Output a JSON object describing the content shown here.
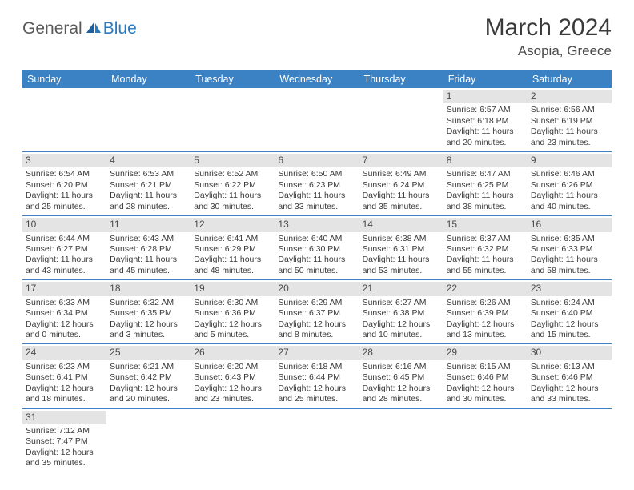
{
  "brand": {
    "general": "General",
    "blue": "Blue"
  },
  "title": "March 2024",
  "location": "Asopia, Greece",
  "colors": {
    "header_bg": "#3b82c4",
    "daynum_bg": "#e4e4e4",
    "rule": "#3b82c4",
    "text": "#3a3a3a",
    "logo_gray": "#5a5a5a",
    "logo_blue": "#2b7ac0"
  },
  "day_headers": [
    "Sunday",
    "Monday",
    "Tuesday",
    "Wednesday",
    "Thursday",
    "Friday",
    "Saturday"
  ],
  "weeks": [
    [
      {
        "n": "",
        "empty": true
      },
      {
        "n": "",
        "empty": true
      },
      {
        "n": "",
        "empty": true
      },
      {
        "n": "",
        "empty": true
      },
      {
        "n": "",
        "empty": true
      },
      {
        "n": "1",
        "sr": "Sunrise: 6:57 AM",
        "ss": "Sunset: 6:18 PM",
        "d1": "Daylight: 11 hours",
        "d2": "and 20 minutes."
      },
      {
        "n": "2",
        "sr": "Sunrise: 6:56 AM",
        "ss": "Sunset: 6:19 PM",
        "d1": "Daylight: 11 hours",
        "d2": "and 23 minutes."
      }
    ],
    [
      {
        "n": "3",
        "sr": "Sunrise: 6:54 AM",
        "ss": "Sunset: 6:20 PM",
        "d1": "Daylight: 11 hours",
        "d2": "and 25 minutes."
      },
      {
        "n": "4",
        "sr": "Sunrise: 6:53 AM",
        "ss": "Sunset: 6:21 PM",
        "d1": "Daylight: 11 hours",
        "d2": "and 28 minutes."
      },
      {
        "n": "5",
        "sr": "Sunrise: 6:52 AM",
        "ss": "Sunset: 6:22 PM",
        "d1": "Daylight: 11 hours",
        "d2": "and 30 minutes."
      },
      {
        "n": "6",
        "sr": "Sunrise: 6:50 AM",
        "ss": "Sunset: 6:23 PM",
        "d1": "Daylight: 11 hours",
        "d2": "and 33 minutes."
      },
      {
        "n": "7",
        "sr": "Sunrise: 6:49 AM",
        "ss": "Sunset: 6:24 PM",
        "d1": "Daylight: 11 hours",
        "d2": "and 35 minutes."
      },
      {
        "n": "8",
        "sr": "Sunrise: 6:47 AM",
        "ss": "Sunset: 6:25 PM",
        "d1": "Daylight: 11 hours",
        "d2": "and 38 minutes."
      },
      {
        "n": "9",
        "sr": "Sunrise: 6:46 AM",
        "ss": "Sunset: 6:26 PM",
        "d1": "Daylight: 11 hours",
        "d2": "and 40 minutes."
      }
    ],
    [
      {
        "n": "10",
        "sr": "Sunrise: 6:44 AM",
        "ss": "Sunset: 6:27 PM",
        "d1": "Daylight: 11 hours",
        "d2": "and 43 minutes."
      },
      {
        "n": "11",
        "sr": "Sunrise: 6:43 AM",
        "ss": "Sunset: 6:28 PM",
        "d1": "Daylight: 11 hours",
        "d2": "and 45 minutes."
      },
      {
        "n": "12",
        "sr": "Sunrise: 6:41 AM",
        "ss": "Sunset: 6:29 PM",
        "d1": "Daylight: 11 hours",
        "d2": "and 48 minutes."
      },
      {
        "n": "13",
        "sr": "Sunrise: 6:40 AM",
        "ss": "Sunset: 6:30 PM",
        "d1": "Daylight: 11 hours",
        "d2": "and 50 minutes."
      },
      {
        "n": "14",
        "sr": "Sunrise: 6:38 AM",
        "ss": "Sunset: 6:31 PM",
        "d1": "Daylight: 11 hours",
        "d2": "and 53 minutes."
      },
      {
        "n": "15",
        "sr": "Sunrise: 6:37 AM",
        "ss": "Sunset: 6:32 PM",
        "d1": "Daylight: 11 hours",
        "d2": "and 55 minutes."
      },
      {
        "n": "16",
        "sr": "Sunrise: 6:35 AM",
        "ss": "Sunset: 6:33 PM",
        "d1": "Daylight: 11 hours",
        "d2": "and 58 minutes."
      }
    ],
    [
      {
        "n": "17",
        "sr": "Sunrise: 6:33 AM",
        "ss": "Sunset: 6:34 PM",
        "d1": "Daylight: 12 hours",
        "d2": "and 0 minutes."
      },
      {
        "n": "18",
        "sr": "Sunrise: 6:32 AM",
        "ss": "Sunset: 6:35 PM",
        "d1": "Daylight: 12 hours",
        "d2": "and 3 minutes."
      },
      {
        "n": "19",
        "sr": "Sunrise: 6:30 AM",
        "ss": "Sunset: 6:36 PM",
        "d1": "Daylight: 12 hours",
        "d2": "and 5 minutes."
      },
      {
        "n": "20",
        "sr": "Sunrise: 6:29 AM",
        "ss": "Sunset: 6:37 PM",
        "d1": "Daylight: 12 hours",
        "d2": "and 8 minutes."
      },
      {
        "n": "21",
        "sr": "Sunrise: 6:27 AM",
        "ss": "Sunset: 6:38 PM",
        "d1": "Daylight: 12 hours",
        "d2": "and 10 minutes."
      },
      {
        "n": "22",
        "sr": "Sunrise: 6:26 AM",
        "ss": "Sunset: 6:39 PM",
        "d1": "Daylight: 12 hours",
        "d2": "and 13 minutes."
      },
      {
        "n": "23",
        "sr": "Sunrise: 6:24 AM",
        "ss": "Sunset: 6:40 PM",
        "d1": "Daylight: 12 hours",
        "d2": "and 15 minutes."
      }
    ],
    [
      {
        "n": "24",
        "sr": "Sunrise: 6:23 AM",
        "ss": "Sunset: 6:41 PM",
        "d1": "Daylight: 12 hours",
        "d2": "and 18 minutes."
      },
      {
        "n": "25",
        "sr": "Sunrise: 6:21 AM",
        "ss": "Sunset: 6:42 PM",
        "d1": "Daylight: 12 hours",
        "d2": "and 20 minutes."
      },
      {
        "n": "26",
        "sr": "Sunrise: 6:20 AM",
        "ss": "Sunset: 6:43 PM",
        "d1": "Daylight: 12 hours",
        "d2": "and 23 minutes."
      },
      {
        "n": "27",
        "sr": "Sunrise: 6:18 AM",
        "ss": "Sunset: 6:44 PM",
        "d1": "Daylight: 12 hours",
        "d2": "and 25 minutes."
      },
      {
        "n": "28",
        "sr": "Sunrise: 6:16 AM",
        "ss": "Sunset: 6:45 PM",
        "d1": "Daylight: 12 hours",
        "d2": "and 28 minutes."
      },
      {
        "n": "29",
        "sr": "Sunrise: 6:15 AM",
        "ss": "Sunset: 6:46 PM",
        "d1": "Daylight: 12 hours",
        "d2": "and 30 minutes."
      },
      {
        "n": "30",
        "sr": "Sunrise: 6:13 AM",
        "ss": "Sunset: 6:46 PM",
        "d1": "Daylight: 12 hours",
        "d2": "and 33 minutes."
      }
    ],
    [
      {
        "n": "31",
        "sr": "Sunrise: 7:12 AM",
        "ss": "Sunset: 7:47 PM",
        "d1": "Daylight: 12 hours",
        "d2": "and 35 minutes."
      },
      {
        "n": "",
        "empty": true
      },
      {
        "n": "",
        "empty": true
      },
      {
        "n": "",
        "empty": true
      },
      {
        "n": "",
        "empty": true
      },
      {
        "n": "",
        "empty": true
      },
      {
        "n": "",
        "empty": true
      }
    ]
  ]
}
